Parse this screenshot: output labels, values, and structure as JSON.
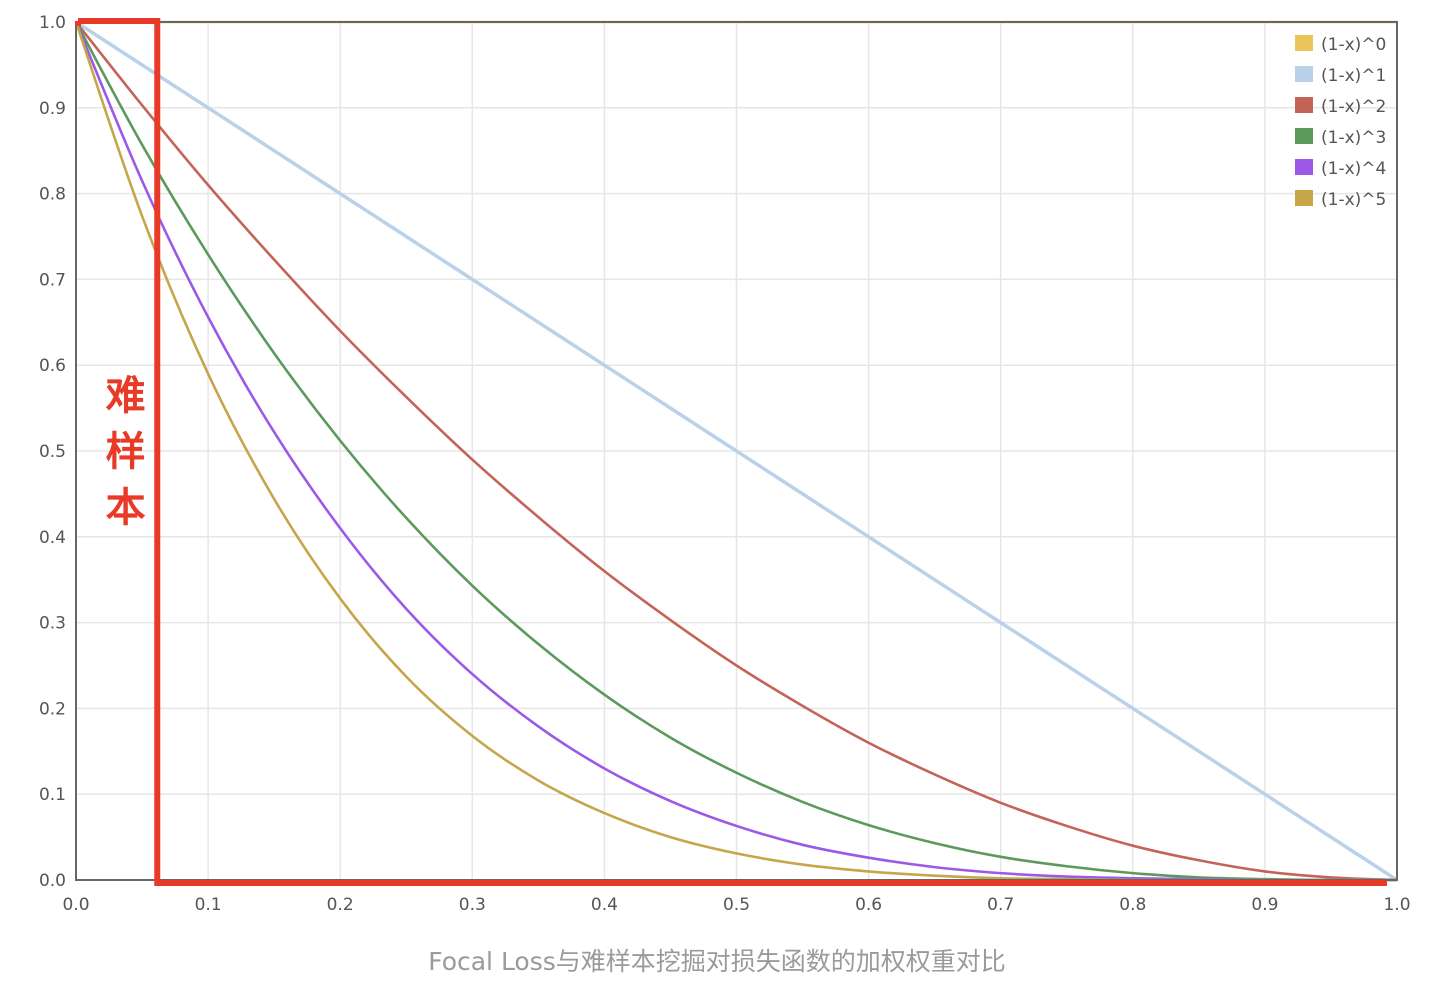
{
  "caption": "Focal Loss与难样本挖掘对损失函数的加权权重对比",
  "chart_data": {
    "type": "line",
    "title": "",
    "xlabel": "",
    "ylabel": "",
    "xlim": [
      0.0,
      1.0
    ],
    "ylim": [
      0.0,
      1.0
    ],
    "x_ticks": [
      "0.0",
      "0.1",
      "0.2",
      "0.3",
      "0.4",
      "0.5",
      "0.6",
      "0.7",
      "0.8",
      "0.9",
      "1.0"
    ],
    "y_ticks": [
      "0.0",
      "0.1",
      "0.2",
      "0.3",
      "0.4",
      "0.5",
      "0.6",
      "0.7",
      "0.8",
      "0.9",
      "1.0"
    ],
    "grid": true,
    "legend_position": "top-right",
    "x": [
      0.0,
      0.05,
      0.1,
      0.15,
      0.2,
      0.25,
      0.3,
      0.35,
      0.4,
      0.45,
      0.5,
      0.55,
      0.6,
      0.65,
      0.7,
      0.75,
      0.8,
      0.85,
      0.9,
      0.95,
      1.0
    ],
    "series": [
      {
        "name": "(1-x)^0",
        "color": "#ecc55a",
        "values": [
          1,
          1,
          1,
          1,
          1,
          1,
          1,
          1,
          1,
          1,
          1,
          1,
          1,
          1,
          1,
          1,
          1,
          1,
          1,
          1,
          1
        ]
      },
      {
        "name": "(1-x)^1",
        "color": "#b9d2ea",
        "values": [
          1.0,
          0.95,
          0.9,
          0.85,
          0.8,
          0.75,
          0.7,
          0.65,
          0.6,
          0.55,
          0.5,
          0.45,
          0.4,
          0.35,
          0.3,
          0.25,
          0.2,
          0.15,
          0.1,
          0.05,
          0.0
        ]
      },
      {
        "name": "(1-x)^2",
        "color": "#c46458",
        "values": [
          1.0,
          0.903,
          0.81,
          0.723,
          0.64,
          0.563,
          0.49,
          0.423,
          0.36,
          0.303,
          0.25,
          0.203,
          0.16,
          0.123,
          0.09,
          0.063,
          0.04,
          0.023,
          0.01,
          0.003,
          0.0
        ]
      },
      {
        "name": "(1-x)^3",
        "color": "#5c9a5c",
        "values": [
          1.0,
          0.857,
          0.729,
          0.614,
          0.512,
          0.422,
          0.343,
          0.275,
          0.216,
          0.166,
          0.125,
          0.091,
          0.064,
          0.043,
          0.027,
          0.016,
          0.008,
          0.003,
          0.001,
          0.0,
          0.0
        ]
      },
      {
        "name": "(1-x)^4",
        "color": "#9c59e8",
        "values": [
          1.0,
          0.815,
          0.656,
          0.522,
          0.41,
          0.316,
          0.24,
          0.179,
          0.13,
          0.092,
          0.063,
          0.041,
          0.026,
          0.015,
          0.008,
          0.004,
          0.002,
          0.001,
          0.0,
          0.0,
          0.0
        ]
      },
      {
        "name": "(1-x)^5",
        "color": "#c7a54a",
        "values": [
          1.0,
          0.774,
          0.59,
          0.444,
          0.328,
          0.237,
          0.168,
          0.116,
          0.078,
          0.05,
          0.031,
          0.018,
          0.01,
          0.005,
          0.002,
          0.001,
          0.0,
          0.0,
          0.0,
          0.0,
          0.0
        ]
      }
    ],
    "annotation": {
      "text": [
        "难",
        "样",
        "本"
      ],
      "color": "#e83a26",
      "x_range": [
        0.0,
        0.06
      ],
      "y_range": [
        0.0,
        1.0
      ]
    }
  }
}
